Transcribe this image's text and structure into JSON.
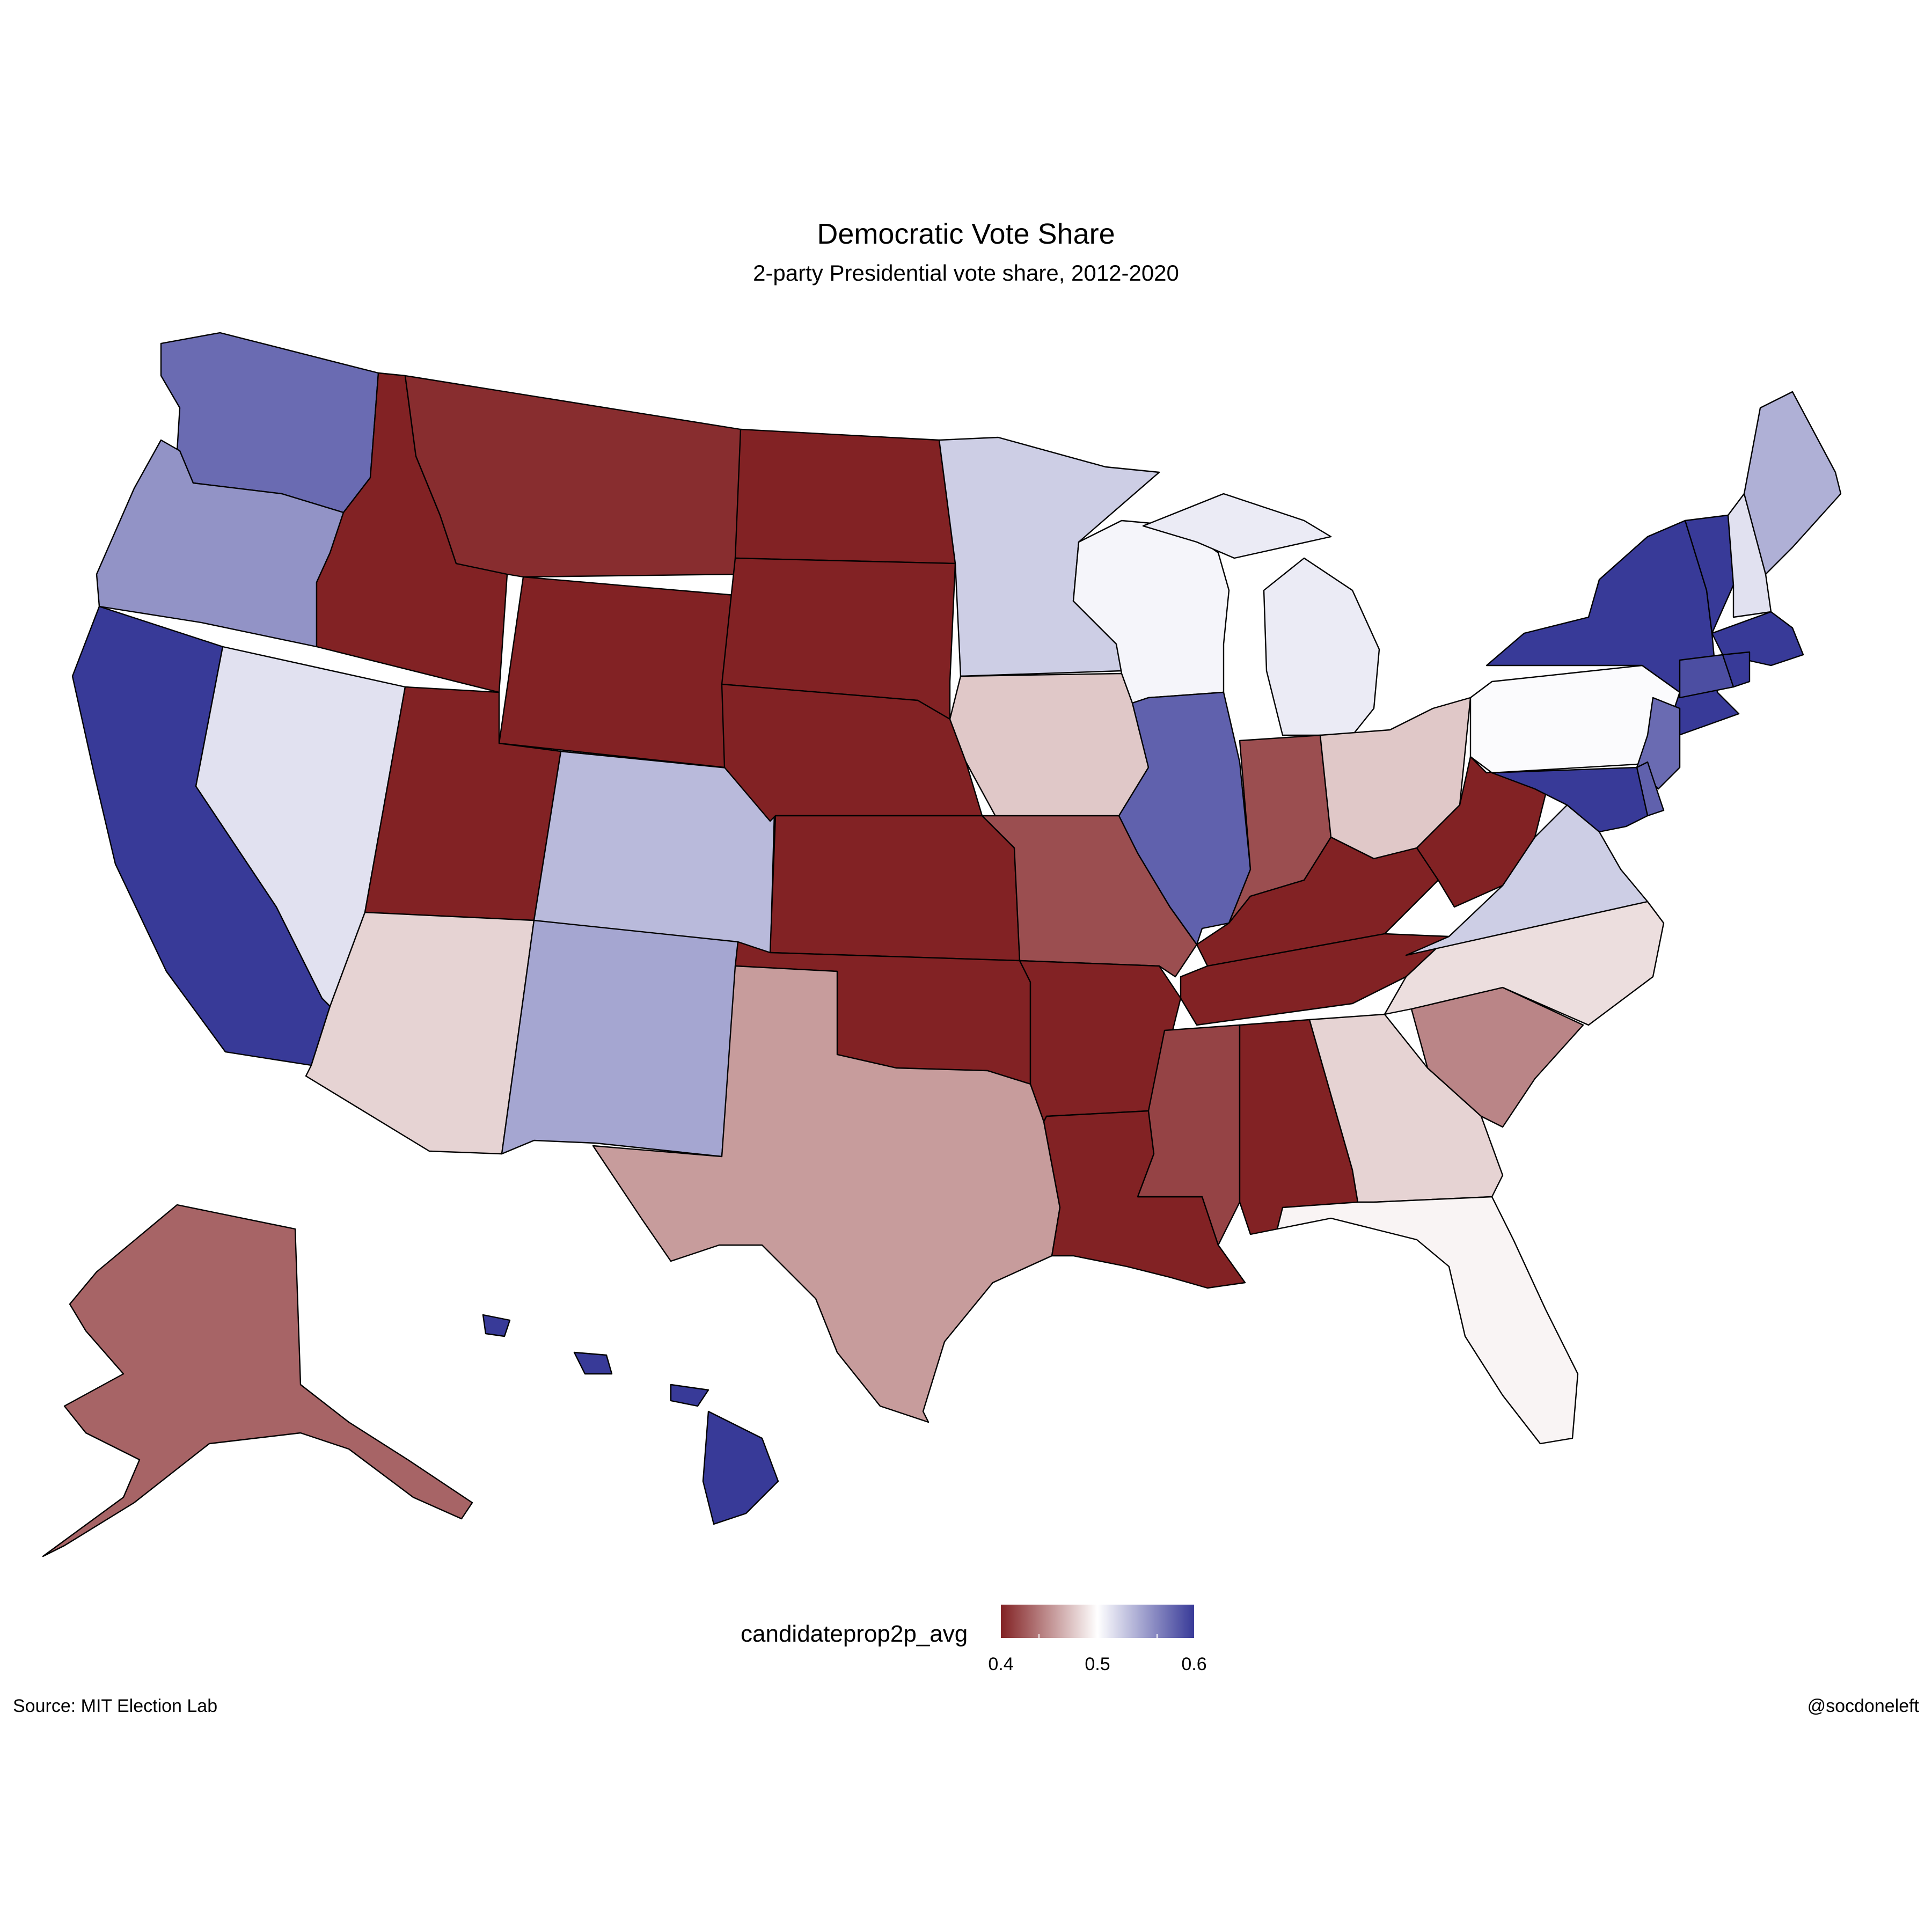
{
  "title": "Democratic Vote Share",
  "subtitle": "2-party Presidential vote share, 2012-2020",
  "caption_left": "Source: MIT Election Lab",
  "caption_right": "@socdoneleft",
  "legend": {
    "title": "candidateprop2p_avg",
    "min": 0.4,
    "mid": 0.5,
    "max": 0.6,
    "ticks": [
      "0.4",
      "0.5",
      "0.6"
    ],
    "low_color": "#822224",
    "mid_color": "#ffffff",
    "high_color": "#383A98"
  },
  "map_data": {
    "type": "choropleth",
    "variable": "candidateprop2p_avg",
    "values": {
      "WA": 0.575,
      "OR": 0.555,
      "CA": 0.64,
      "NV": 0.515,
      "ID": 0.32,
      "MT": 0.405,
      "WY": 0.27,
      "UT": 0.35,
      "CO": 0.535,
      "AZ": 0.48,
      "NM": 0.545,
      "ND": 0.32,
      "SD": 0.35,
      "NE": 0.37,
      "KS": 0.39,
      "OK": 0.31,
      "TX": 0.455,
      "MN": 0.525,
      "IA": 0.475,
      "MO": 0.42,
      "AR": 0.36,
      "LA": 0.395,
      "WI": 0.505,
      "IL": 0.58,
      "MI": 0.51,
      "IN": 0.42,
      "OH": 0.475,
      "KY": 0.36,
      "TN": 0.37,
      "MS": 0.415,
      "AL": 0.365,
      "GA": 0.48,
      "FL": 0.495,
      "SC": 0.445,
      "NC": 0.485,
      "VA": 0.525,
      "WV": 0.3,
      "PA": 0.502,
      "NY": 0.61,
      "VT": 0.67,
      "NH": 0.515,
      "ME": 0.54,
      "MA": 0.65,
      "RI": 0.62,
      "CT": 0.59,
      "NJ": 0.575,
      "DE": 0.58,
      "MD": 0.64,
      "AK": 0.43,
      "HI": 0.68
    }
  }
}
